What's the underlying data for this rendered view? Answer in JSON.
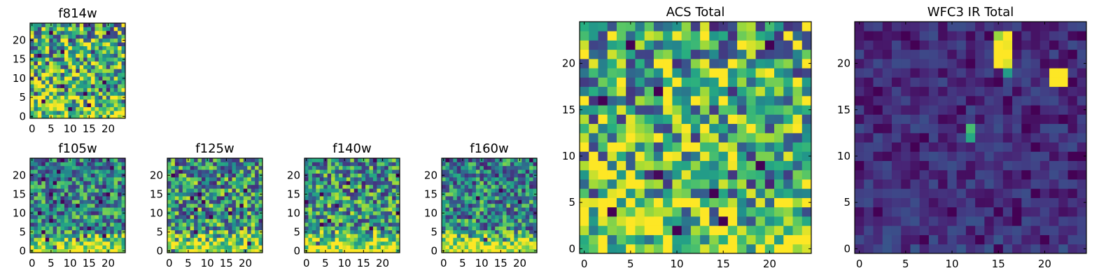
{
  "figure": {
    "description_colormap": "viridis",
    "colors": {
      "low": "#440154",
      "high": "#fde725",
      "axis": "#000000"
    }
  },
  "chart_data": [
    {
      "id": "f814w",
      "type": "heatmap",
      "title": "f814w",
      "grid_size": 25,
      "xlim": [
        -0.5,
        24.5
      ],
      "ylim": [
        -0.5,
        24.5
      ],
      "xticks": [
        0,
        5,
        10,
        15,
        20
      ],
      "xtick_labels": [
        "0",
        "5",
        "10",
        "15",
        "20"
      ],
      "yticks": [
        0,
        5,
        10,
        15,
        20
      ],
      "ytick_labels": [
        "0",
        "5",
        "10",
        "15",
        "20"
      ],
      "bright_bottom": 0.25,
      "noise": 0.45,
      "seed": 11,
      "hotspots": [],
      "base": 0.62
    },
    {
      "id": "f105w",
      "type": "heatmap",
      "title": "f105w",
      "grid_size": 25,
      "xlim": [
        -0.5,
        24.5
      ],
      "ylim": [
        -0.5,
        24.5
      ],
      "xticks": [
        0,
        5,
        10,
        15,
        20
      ],
      "xtick_labels": [
        "0",
        "5",
        "10",
        "15",
        "20"
      ],
      "yticks": [
        0,
        5,
        10,
        15,
        20
      ],
      "ytick_labels": [
        "0",
        "5",
        "10",
        "15",
        "20"
      ],
      "bright_bottom": 0.55,
      "noise": 0.35,
      "seed": 23,
      "hotspots": [],
      "base": 0.45
    },
    {
      "id": "f125w",
      "type": "heatmap",
      "title": "f125w",
      "grid_size": 25,
      "xlim": [
        -0.5,
        24.5
      ],
      "ylim": [
        -0.5,
        24.5
      ],
      "xticks": [
        0,
        5,
        10,
        15,
        20
      ],
      "xtick_labels": [
        "0",
        "5",
        "10",
        "15",
        "20"
      ],
      "yticks": [
        0,
        5,
        10,
        15,
        20
      ],
      "ytick_labels": [
        "0",
        "5",
        "10",
        "15",
        "20"
      ],
      "bright_bottom": 0.5,
      "noise": 0.4,
      "seed": 37,
      "hotspots": [],
      "base": 0.5
    },
    {
      "id": "f140w",
      "type": "heatmap",
      "title": "f140w",
      "grid_size": 25,
      "xlim": [
        -0.5,
        24.5
      ],
      "ylim": [
        -0.5,
        24.5
      ],
      "xticks": [
        0,
        5,
        10,
        15,
        20
      ],
      "xtick_labels": [
        "0",
        "5",
        "10",
        "15",
        "20"
      ],
      "yticks": [
        0,
        5,
        10,
        15,
        20
      ],
      "ytick_labels": [
        "0",
        "5",
        "10",
        "15",
        "20"
      ],
      "bright_bottom": 0.55,
      "noise": 0.38,
      "seed": 41,
      "hotspots": [],
      "base": 0.5
    },
    {
      "id": "f160w",
      "type": "heatmap",
      "title": "f160w",
      "grid_size": 25,
      "xlim": [
        -0.5,
        24.5
      ],
      "ylim": [
        -0.5,
        24.5
      ],
      "xticks": [
        0,
        5,
        10,
        15,
        20
      ],
      "xtick_labels": [
        "0",
        "5",
        "10",
        "15",
        "20"
      ],
      "yticks": [
        0,
        5,
        10,
        15,
        20
      ],
      "ytick_labels": [
        "0",
        "5",
        "10",
        "15",
        "20"
      ],
      "bright_bottom": 0.6,
      "noise": 0.35,
      "seed": 53,
      "hotspots": [],
      "base": 0.45
    },
    {
      "id": "acs_total",
      "type": "heatmap",
      "title": "ACS Total",
      "grid_size": 25,
      "xlim": [
        -0.5,
        24.5
      ],
      "ylim": [
        -0.5,
        24.5
      ],
      "xticks": [
        0,
        5,
        10,
        15,
        20
      ],
      "xtick_labels": [
        "0",
        "5",
        "10",
        "15",
        "20"
      ],
      "yticks": [
        0,
        5,
        10,
        15,
        20
      ],
      "ytick_labels": [
        "0",
        "5",
        "10",
        "15",
        "20"
      ],
      "bright_bottom": 0.25,
      "noise": 0.45,
      "seed": 11,
      "hotspots": [],
      "base": 0.62
    },
    {
      "id": "wfc3_ir_total",
      "type": "heatmap",
      "title": "WFC3 IR Total",
      "grid_size": 25,
      "xlim": [
        -0.5,
        24.5
      ],
      "ylim": [
        -0.5,
        24.5
      ],
      "xticks": [
        0,
        5,
        10,
        15,
        20
      ],
      "xtick_labels": [
        "0",
        "5",
        "10",
        "15",
        "20"
      ],
      "yticks": [
        0,
        5,
        10,
        15,
        20
      ],
      "ytick_labels": [
        "0",
        "5",
        "10",
        "15",
        "20"
      ],
      "bright_bottom": 0.05,
      "noise": 0.14,
      "seed": 71,
      "base": 0.16,
      "hotspots": [
        {
          "x": 15,
          "y": 20,
          "v": 1.0
        },
        {
          "x": 16,
          "y": 20,
          "v": 0.95
        },
        {
          "x": 15,
          "y": 21,
          "v": 1.0
        },
        {
          "x": 16,
          "y": 21,
          "v": 1.0
        },
        {
          "x": 15,
          "y": 22,
          "v": 1.0
        },
        {
          "x": 16,
          "y": 22,
          "v": 0.98
        },
        {
          "x": 16,
          "y": 23,
          "v": 1.0
        },
        {
          "x": 15,
          "y": 23,
          "v": 0.85
        },
        {
          "x": 16,
          "y": 19,
          "v": 0.55
        },
        {
          "x": 21,
          "y": 18,
          "v": 1.0
        },
        {
          "x": 22,
          "y": 18,
          "v": 1.0
        },
        {
          "x": 21,
          "y": 19,
          "v": 1.0
        },
        {
          "x": 22,
          "y": 19,
          "v": 1.0
        },
        {
          "x": 12,
          "y": 12,
          "v": 0.6
        },
        {
          "x": 12,
          "y": 13,
          "v": 0.7
        }
      ]
    }
  ]
}
